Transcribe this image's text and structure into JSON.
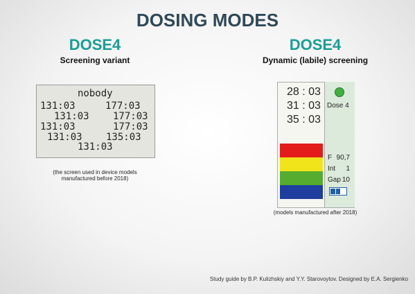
{
  "title": "DOSING MODES",
  "left": {
    "heading": "DOSE4",
    "subtitle": "Screening variant",
    "screen": [
      "nobody",
      "131:03",
      "177:03",
      "131:03",
      "177:03",
      "131:03",
      "177:03",
      "131:03",
      "135:03",
      "131:03"
    ],
    "caption": "(the screen used in device models manufactured before 2018)"
  },
  "right": {
    "heading": "DOSE4",
    "subtitle": "Dynamic (labile) screening",
    "times": [
      "28 : 03",
      "31 : 03",
      "35 : 03"
    ],
    "dose": "Dose 4",
    "params": [
      [
        "F",
        "90,7"
      ],
      [
        "Int",
        "1"
      ],
      [
        "Gap",
        "10"
      ]
    ],
    "caption": "(models manufactured after 2018)"
  },
  "footer": "Study guide by B.P. Kulizhskiy and Y.Y. Starovoytov. Designed by E.A. Sergienko"
}
